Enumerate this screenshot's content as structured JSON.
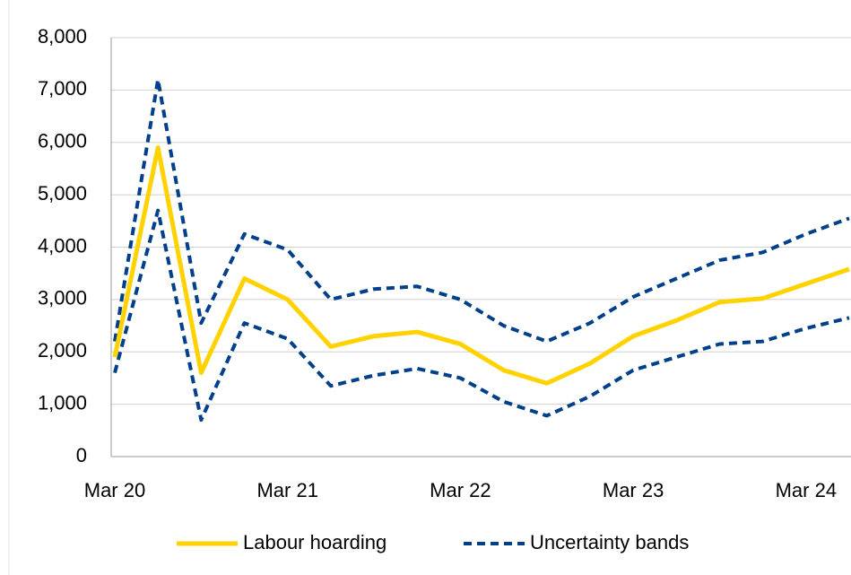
{
  "chart_data": {
    "type": "line",
    "categories": [
      "Mar 20",
      null,
      null,
      null,
      "Mar 21",
      null,
      null,
      null,
      "Mar 22",
      null,
      null,
      null,
      "Mar 23",
      null,
      null,
      null,
      "Mar 24",
      null
    ],
    "series": [
      {
        "name": "Labour hoarding",
        "color": "#ffd200",
        "dashed": false,
        "values": [
          1900,
          5900,
          1600,
          3400,
          3000,
          2100,
          2300,
          2380,
          2150,
          1650,
          1400,
          1780,
          2300,
          2600,
          2950,
          3020,
          3300,
          3580
        ]
      },
      {
        "name": "Uncertainty bands",
        "color": "#00408a",
        "dashed": true,
        "upper": [
          2200,
          7200,
          2550,
          4250,
          3950,
          3000,
          3200,
          3250,
          3000,
          2500,
          2200,
          2550,
          3050,
          3400,
          3750,
          3900,
          4250,
          4550
        ],
        "lower": [
          1600,
          4700,
          700,
          2550,
          2250,
          1350,
          1550,
          1680,
          1500,
          1050,
          780,
          1150,
          1650,
          1900,
          2150,
          2200,
          2450,
          2650
        ]
      }
    ],
    "ylim": [
      0,
      8000
    ],
    "yticks": [
      0,
      {
        "value": 1000,
        "label": "1,000"
      },
      {
        "value": 2000,
        "label": "2,000"
      },
      {
        "value": 3000,
        "label": "3,000"
      },
      {
        "value": 4000,
        "label": "4,000"
      },
      {
        "value": 5000,
        "label": "5,000"
      },
      {
        "value": 6000,
        "label": "6,000"
      },
      {
        "value": 7000,
        "label": "7,000"
      },
      {
        "value": 8000,
        "label": "8,000"
      }
    ],
    "grid": true
  }
}
